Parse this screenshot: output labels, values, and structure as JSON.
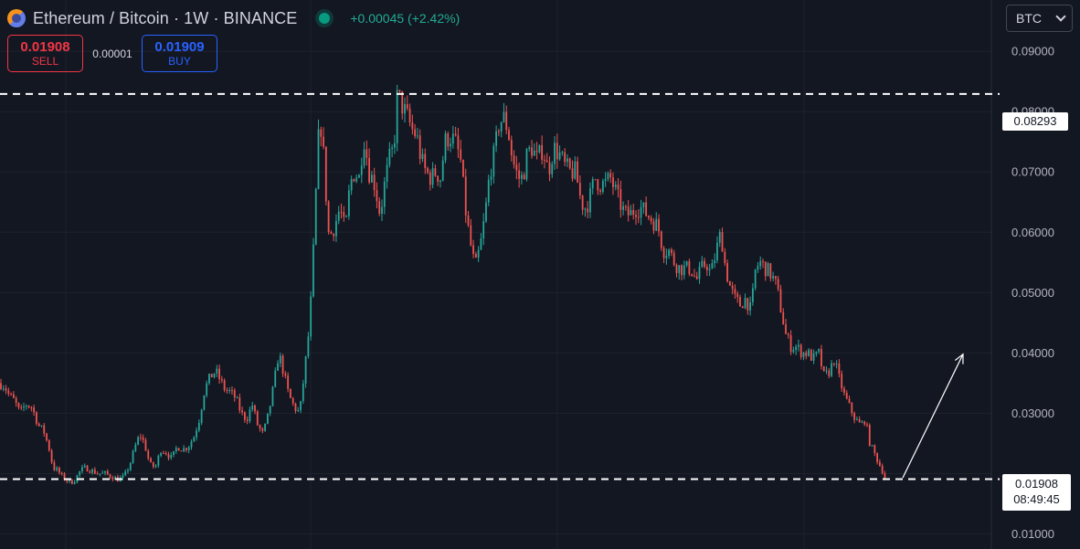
{
  "header": {
    "title": "Ethereum / Bitcoin · 1W · BINANCE",
    "change": "+0.00045 (+2.42%)"
  },
  "trade": {
    "sell_price": "0.01908",
    "sell_label": "SELL",
    "spread": "0.00001",
    "buy_price": "0.01909",
    "buy_label": "BUY"
  },
  "currency": {
    "selected": "BTC"
  },
  "price_axis": {
    "ticks": [
      "0.09000",
      "0.08000",
      "0.07000",
      "0.06000",
      "0.05000",
      "0.04000",
      "0.03000",
      "0.01000"
    ]
  },
  "level_label": "0.08293",
  "current": {
    "price": "0.01908",
    "countdown": "08:49:45"
  },
  "colors": {
    "up": "#26a69a",
    "down": "#ef5350",
    "background": "#131722",
    "grid": "#1e222d"
  },
  "chart_data": {
    "type": "candlestick",
    "y_scale": "linear",
    "ylim": [
      0.0075,
      0.0985
    ],
    "grid": true,
    "levels": [
      0.08293,
      0.01908
    ],
    "trend_arrow": {
      "from": 0.0193,
      "to": 0.0398
    },
    "close_path": [
      [
        0,
        0.035
      ],
      [
        5,
        0.0345
      ],
      [
        10,
        0.033
      ],
      [
        16,
        0.032
      ],
      [
        22,
        0.03
      ],
      [
        28,
        0.0315
      ],
      [
        35,
        0.031
      ],
      [
        42,
        0.028
      ],
      [
        48,
        0.027
      ],
      [
        54,
        0.024
      ],
      [
        58,
        0.021
      ],
      [
        63,
        0.0205
      ],
      [
        68,
        0.0195
      ],
      [
        72,
        0.019
      ],
      [
        77,
        0.0185
      ],
      [
        82,
        0.019
      ],
      [
        88,
        0.0205
      ],
      [
        94,
        0.021
      ],
      [
        100,
        0.0205
      ],
      [
        108,
        0.02
      ],
      [
        115,
        0.02
      ],
      [
        122,
        0.0195
      ],
      [
        130,
        0.019
      ],
      [
        136,
        0.0195
      ],
      [
        142,
        0.0215
      ],
      [
        148,
        0.0245
      ],
      [
        153,
        0.0265
      ],
      [
        158,
        0.025
      ],
      [
        164,
        0.0215
      ],
      [
        170,
        0.021
      ],
      [
        176,
        0.024
      ],
      [
        182,
        0.0235
      ],
      [
        188,
        0.0225
      ],
      [
        194,
        0.0245
      ],
      [
        200,
        0.024
      ],
      [
        206,
        0.0245
      ],
      [
        212,
        0.026
      ],
      [
        218,
        0.029
      ],
      [
        224,
        0.034
      ],
      [
        230,
        0.036
      ],
      [
        236,
        0.037
      ],
      [
        241,
        0.0355
      ],
      [
        246,
        0.034
      ],
      [
        252,
        0.0335
      ],
      [
        258,
        0.0325
      ],
      [
        264,
        0.03
      ],
      [
        270,
        0.029
      ],
      [
        276,
        0.0315
      ],
      [
        282,
        0.028
      ],
      [
        288,
        0.0265
      ],
      [
        294,
        0.03
      ],
      [
        300,
        0.035
      ],
      [
        305,
        0.04
      ],
      [
        310,
        0.037
      ],
      [
        316,
        0.033
      ],
      [
        322,
        0.031
      ],
      [
        328,
        0.03
      ],
      [
        334,
        0.038
      ],
      [
        339,
        0.045
      ],
      [
        344,
        0.06
      ],
      [
        348,
        0.075
      ],
      [
        352,
        0.078
      ],
      [
        356,
        0.068
      ],
      [
        360,
        0.059
      ],
      [
        366,
        0.061
      ],
      [
        372,
        0.064
      ],
      [
        378,
        0.06
      ],
      [
        383,
        0.068
      ],
      [
        388,
        0.07
      ],
      [
        393,
        0.069
      ],
      [
        398,
        0.076
      ],
      [
        404,
        0.07
      ],
      [
        410,
        0.068
      ],
      [
        416,
        0.063
      ],
      [
        421,
        0.068
      ],
      [
        426,
        0.072
      ],
      [
        431,
        0.074
      ],
      [
        435,
        0.083
      ],
      [
        440,
        0.081
      ],
      [
        446,
        0.079
      ],
      [
        451,
        0.077
      ],
      [
        456,
        0.076
      ],
      [
        461,
        0.072
      ],
      [
        466,
        0.07
      ],
      [
        472,
        0.069
      ],
      [
        477,
        0.07
      ],
      [
        482,
        0.069
      ],
      [
        487,
        0.075
      ],
      [
        492,
        0.076
      ],
      [
        498,
        0.075
      ],
      [
        504,
        0.072
      ],
      [
        510,
        0.063
      ],
      [
        515,
        0.058
      ],
      [
        520,
        0.054
      ],
      [
        526,
        0.058
      ],
      [
        531,
        0.063
      ],
      [
        536,
        0.07
      ],
      [
        541,
        0.073
      ],
      [
        546,
        0.078
      ],
      [
        551,
        0.079
      ],
      [
        556,
        0.077
      ],
      [
        561,
        0.072
      ],
      [
        567,
        0.069
      ],
      [
        572,
        0.069
      ],
      [
        577,
        0.073
      ],
      [
        582,
        0.074
      ],
      [
        588,
        0.072
      ],
      [
        594,
        0.074
      ],
      [
        600,
        0.07
      ],
      [
        606,
        0.074
      ],
      [
        612,
        0.073
      ],
      [
        618,
        0.071
      ],
      [
        624,
        0.07
      ],
      [
        630,
        0.07
      ],
      [
        636,
        0.065
      ],
      [
        641,
        0.064
      ],
      [
        646,
        0.066
      ],
      [
        651,
        0.069
      ],
      [
        656,
        0.068
      ],
      [
        662,
        0.068
      ],
      [
        668,
        0.069
      ],
      [
        673,
        0.067
      ],
      [
        678,
        0.065
      ],
      [
        684,
        0.063
      ],
      [
        690,
        0.063
      ],
      [
        696,
        0.064
      ],
      [
        702,
        0.064
      ],
      [
        708,
        0.063
      ],
      [
        714,
        0.062
      ],
      [
        720,
        0.061
      ],
      [
        726,
        0.057
      ],
      [
        732,
        0.057
      ],
      [
        738,
        0.055
      ],
      [
        744,
        0.054
      ],
      [
        750,
        0.054
      ],
      [
        756,
        0.054
      ],
      [
        762,
        0.052
      ],
      [
        768,
        0.054
      ],
      [
        773,
        0.055
      ],
      [
        778,
        0.053
      ],
      [
        784,
        0.057
      ],
      [
        789,
        0.06
      ],
      [
        794,
        0.054
      ],
      [
        799,
        0.051
      ],
      [
        804,
        0.049
      ],
      [
        810,
        0.048
      ],
      [
        816,
        0.049
      ],
      [
        822,
        0.047
      ],
      [
        827,
        0.054
      ],
      [
        832,
        0.055
      ],
      [
        838,
        0.054
      ],
      [
        844,
        0.053
      ],
      [
        850,
        0.051
      ],
      [
        855,
        0.047
      ],
      [
        860,
        0.043
      ],
      [
        866,
        0.041
      ],
      [
        872,
        0.041
      ],
      [
        878,
        0.04
      ],
      [
        884,
        0.04
      ],
      [
        890,
        0.039
      ],
      [
        896,
        0.04
      ],
      [
        902,
        0.036
      ],
      [
        908,
        0.037
      ],
      [
        913,
        0.039
      ],
      [
        918,
        0.036
      ],
      [
        924,
        0.033
      ],
      [
        930,
        0.031
      ],
      [
        936,
        0.029
      ],
      [
        942,
        0.028
      ],
      [
        947,
        0.029
      ],
      [
        952,
        0.025
      ],
      [
        958,
        0.023
      ],
      [
        964,
        0.021
      ],
      [
        970,
        0.0192
      ]
    ]
  }
}
